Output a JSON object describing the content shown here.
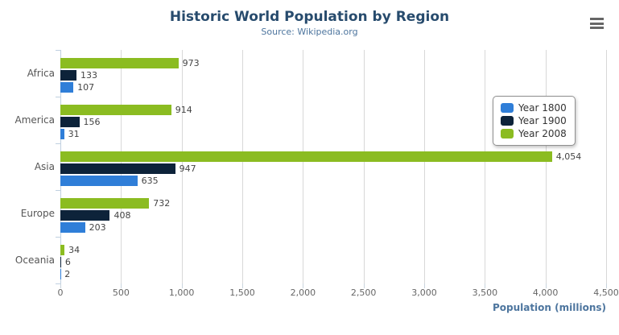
{
  "header": {
    "title": "Historic World Population by Region",
    "subtitle": "Source: Wikipedia.org"
  },
  "context_menu": {
    "icon": "hamburger-icon"
  },
  "axis": {
    "x_title": "Population (millions)"
  },
  "legend": {
    "position": "right",
    "items": [
      {
        "label": "Year 1800",
        "color": "#2f7ed8"
      },
      {
        "label": "Year 1900",
        "color": "#0d233a"
      },
      {
        "label": "Year 2008",
        "color": "#8bbc21"
      }
    ]
  },
  "chart_data": {
    "type": "bar",
    "title": "Historic World Population by Region",
    "subtitle": "Source: Wikipedia.org",
    "categories": [
      "Africa",
      "America",
      "Asia",
      "Europe",
      "Oceania"
    ],
    "series": [
      {
        "name": "Year 1800",
        "color": "#2f7ed8",
        "values": [
          107,
          31,
          635,
          203,
          2
        ]
      },
      {
        "name": "Year 1900",
        "color": "#0d233a",
        "values": [
          133,
          156,
          947,
          408,
          6
        ]
      },
      {
        "name": "Year 2008",
        "color": "#8bbc21",
        "values": [
          973,
          914,
          4054,
          732,
          34
        ]
      }
    ],
    "bar_order_top_to_bottom": [
      "Year 2008",
      "Year 1900",
      "Year 1800"
    ],
    "xlabel": "Population (millions)",
    "ylabel": "",
    "xlim": [
      0,
      4500
    ],
    "xtick_step": 500,
    "xticks": [
      "0",
      "500",
      "1,000",
      "1,500",
      "2,000",
      "2,500",
      "3,000",
      "3,500",
      "4,000",
      "4,500"
    ],
    "grid": true,
    "data_labels": true,
    "legend_position": "right"
  },
  "colors": {
    "title": "#274b6d",
    "subtitle": "#4d759e",
    "axis_title": "#4d759e",
    "axis_labels": "#666666",
    "data_labels": "#444444",
    "gridline": "#d8d8d8",
    "category_axis_line": "#c0d0e0",
    "legend_border": "#909090",
    "menu_icon": "#666666"
  }
}
